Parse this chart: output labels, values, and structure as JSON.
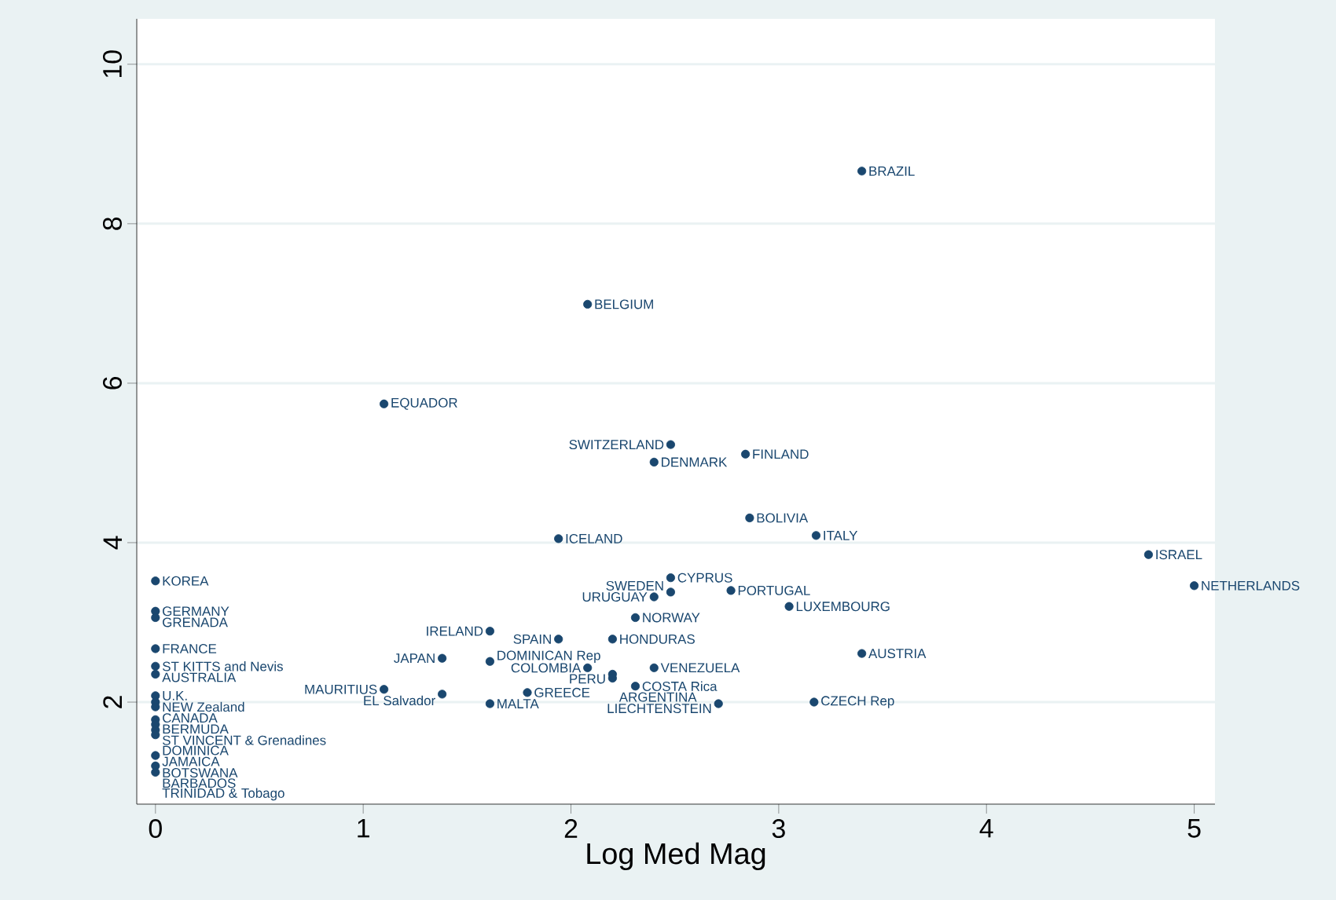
{
  "chart_data": {
    "type": "scatter",
    "xlabel": "Log Med Mag",
    "series": [
      {
        "color": "#1a476f",
        "x": [
          3.4,
          2.08,
          1.1,
          2.48,
          2.84,
          2.4,
          2.86,
          3.18,
          1.94,
          4.78,
          5.0,
          2.48,
          2.48,
          2.77,
          2.4,
          3.05,
          2.31,
          1.61,
          1.94,
          2.2,
          3.4,
          1.38,
          1.61,
          2.08,
          2.4,
          2.2,
          2.2,
          2.31,
          1.1,
          1.38,
          1.79,
          1.61,
          2.71,
          3.17,
          0,
          0,
          0,
          0,
          0,
          0,
          0,
          0,
          0,
          0,
          0,
          0,
          0,
          0,
          0,
          0
        ],
        "values": [
          8.66,
          6.99,
          5.74,
          5.23,
          5.11,
          5.01,
          4.31,
          4.09,
          4.05,
          3.85,
          3.46,
          3.56,
          3.38,
          3.4,
          3.32,
          3.2,
          3.06,
          2.89,
          2.79,
          2.79,
          2.61,
          2.55,
          2.51,
          2.43,
          2.43,
          2.35,
          2.3,
          2.2,
          2.16,
          2.1,
          2.12,
          1.98,
          1.98,
          2.0,
          3.52,
          3.14,
          3.06,
          2.67,
          2.45,
          2.35,
          2.08,
          2.0,
          1.94,
          1.78,
          1.72,
          1.65,
          1.59,
          1.33,
          1.2,
          1.12
        ]
      }
    ],
    "annotations": [
      {
        "text": "BRAZIL",
        "x": 3.4,
        "y": 8.66
      },
      {
        "text": "BELGIUM",
        "x": 2.08,
        "y": 6.99
      },
      {
        "text": "EQUADOR",
        "x": 1.1,
        "y": 5.74
      },
      {
        "text": "SWITZERLAND",
        "x": 2.48,
        "y": 5.23
      },
      {
        "text": "FINLAND",
        "x": 2.84,
        "y": 5.11
      },
      {
        "text": "DENMARK",
        "x": 2.4,
        "y": 5.01
      },
      {
        "text": "BOLIVIA",
        "x": 2.86,
        "y": 4.31
      },
      {
        "text": "ITALY",
        "x": 3.18,
        "y": 4.09
      },
      {
        "text": "ICELAND",
        "x": 1.94,
        "y": 4.05
      },
      {
        "text": "ISRAEL",
        "x": 4.78,
        "y": 3.85
      },
      {
        "text": "NETHERLANDS",
        "x": 5.0,
        "y": 3.46
      },
      {
        "text": "CYPRUS",
        "x": 2.48,
        "y": 3.56
      },
      {
        "text": "SWEDEN",
        "x": 2.48,
        "y": 3.38
      },
      {
        "text": "PORTUGAL",
        "x": 2.77,
        "y": 3.4
      },
      {
        "text": "URUGUAY",
        "x": 2.4,
        "y": 3.32
      },
      {
        "text": "LUXEMBOURG",
        "x": 3.05,
        "y": 3.2
      },
      {
        "text": "NORWAY",
        "x": 2.31,
        "y": 3.06
      },
      {
        "text": "IRELAND",
        "x": 1.61,
        "y": 2.89
      },
      {
        "text": "SPAIN",
        "x": 1.94,
        "y": 2.79
      },
      {
        "text": "HONDURAS",
        "x": 2.2,
        "y": 2.79
      },
      {
        "text": "AUSTRIA",
        "x": 3.4,
        "y": 2.61
      },
      {
        "text": "JAPAN",
        "x": 1.38,
        "y": 2.55
      },
      {
        "text": "DOMINICAN Rep",
        "x": 1.61,
        "y": 2.51
      },
      {
        "text": "COLOMBIA",
        "x": 2.08,
        "y": 2.43
      },
      {
        "text": "VENEZUELA",
        "x": 2.4,
        "y": 2.43
      },
      {
        "text": "PERU",
        "x": 2.2,
        "y": 2.35
      },
      {
        "text": "ARGENTINA",
        "x": 2.2,
        "y": 2.3
      },
      {
        "text": "COSTA Rica",
        "x": 2.31,
        "y": 2.2
      },
      {
        "text": "MAURITIUS",
        "x": 1.1,
        "y": 2.16
      },
      {
        "text": "EL Salvador",
        "x": 1.38,
        "y": 2.1
      },
      {
        "text": "GREECE",
        "x": 1.79,
        "y": 2.12
      },
      {
        "text": "MALTA",
        "x": 1.61,
        "y": 1.98
      },
      {
        "text": "LIECHTENSTEIN",
        "x": 2.71,
        "y": 1.98
      },
      {
        "text": "CZECH Rep",
        "x": 3.17,
        "y": 2.0
      },
      {
        "text": "KOREA",
        "x": 0,
        "y": 3.52
      },
      {
        "text": "GERMANY",
        "x": 0,
        "y": 3.14
      },
      {
        "text": "GRENADA",
        "x": 0,
        "y": 3.06
      },
      {
        "text": "FRANCE",
        "x": 0,
        "y": 2.67
      },
      {
        "text": "ST KITTS and Nevis",
        "x": 0,
        "y": 2.45
      },
      {
        "text": "AUSTRALIA",
        "x": 0,
        "y": 2.35
      },
      {
        "text": "U.K.",
        "x": 0,
        "y": 2.08
      },
      {
        "text": "NEW Zealand",
        "x": 0,
        "y": 2.0
      },
      {
        "text": "CANADA",
        "x": 0,
        "y": 1.94
      },
      {
        "text": "BERMUDA",
        "x": 0,
        "y": 1.78
      },
      {
        "text": "ST VINCENT & Grenadines",
        "x": 0,
        "y": 1.72
      },
      {
        "text": "DOMINICA",
        "x": 0,
        "y": 1.65
      },
      {
        "text": "JAMAICA",
        "x": 0,
        "y": 1.59
      },
      {
        "text": "BOTSWANA",
        "x": 0,
        "y": 1.33
      },
      {
        "text": "BARBADOS",
        "x": 0,
        "y": 1.2
      },
      {
        "text": "TRINIDAD & Tobago",
        "x": 0,
        "y": 1.12
      }
    ],
    "xlim": [
      -0.09,
      5.1
    ],
    "ylim": [
      0.72,
      10.57
    ],
    "xticks": [
      0,
      1,
      2,
      3,
      4,
      5
    ],
    "yticks": [
      2,
      4,
      6,
      8,
      10
    ],
    "grid": "y",
    "marker": "circle"
  }
}
